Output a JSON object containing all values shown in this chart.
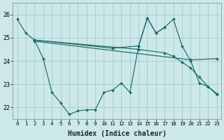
{
  "xlabel": "Humidex (Indice chaleur)",
  "bg_color": "#cce8e8",
  "grid_color": "#aad0d0",
  "line_color": "#1a6b6b",
  "xlim": [
    -0.5,
    23.5
  ],
  "ylim": [
    21.5,
    26.5
  ],
  "yticks": [
    22,
    23,
    24,
    25,
    26
  ],
  "xticks": [
    0,
    1,
    2,
    3,
    4,
    5,
    6,
    7,
    8,
    9,
    10,
    11,
    12,
    13,
    14,
    15,
    16,
    17,
    18,
    19,
    20,
    21,
    22,
    23
  ],
  "lines": [
    {
      "x": [
        0,
        1,
        2,
        3,
        4,
        5,
        6,
        7,
        8,
        9,
        10,
        11,
        12,
        13,
        14,
        15,
        16,
        17
      ],
      "y": [
        25.8,
        25.2,
        24.9,
        24.1,
        22.65,
        22.2,
        21.7,
        21.85,
        21.9,
        21.9,
        22.65,
        22.75,
        23.05,
        22.65,
        24.65,
        25.85,
        25.2,
        25.45
      ]
    },
    {
      "x": [
        2,
        14,
        17,
        18,
        19,
        20,
        21,
        22,
        23
      ],
      "y": [
        24.9,
        24.5,
        24.35,
        24.2,
        23.95,
        23.7,
        23.3,
        22.9,
        22.55
      ]
    },
    {
      "x": [
        2,
        20,
        23
      ],
      "y": [
        24.85,
        24.05,
        24.1
      ]
    },
    {
      "x": [
        2,
        11,
        14,
        15,
        16,
        17,
        18,
        19,
        20,
        21,
        22,
        23
      ],
      "y": [
        24.9,
        24.55,
        24.65,
        25.85,
        25.2,
        25.45,
        25.8,
        24.65,
        24.0,
        23.05,
        22.9,
        22.6
      ]
    }
  ]
}
